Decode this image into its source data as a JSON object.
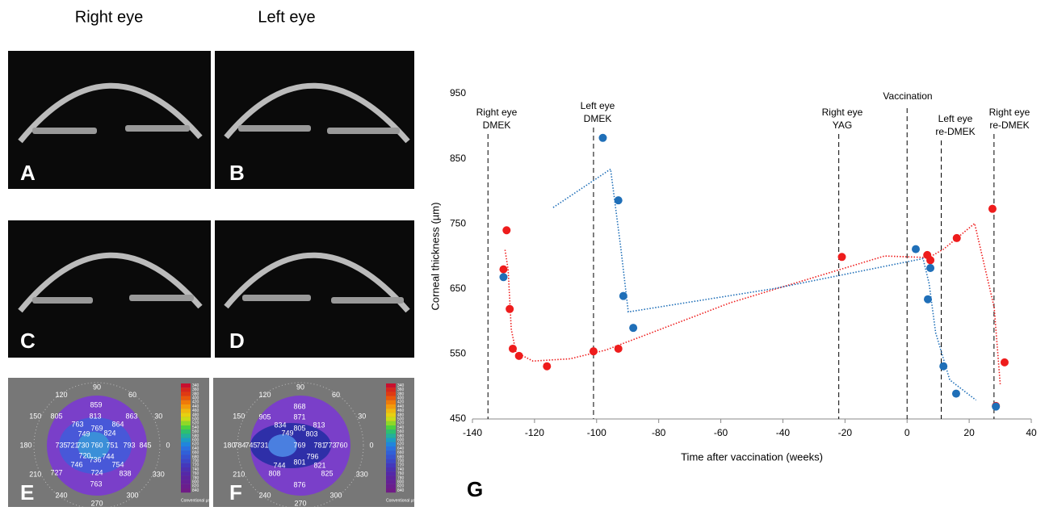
{
  "headers": {
    "right": "Right eye",
    "left": "Left eye"
  },
  "panels": {
    "A": "A",
    "B": "B",
    "C": "C",
    "D": "D",
    "E": "E",
    "F": "F",
    "G": "G"
  },
  "maps": [
    {
      "values": [
        "859",
        "763",
        "769",
        "864",
        "805",
        "813",
        "863",
        "735",
        "721",
        "730",
        "760",
        "751",
        "793",
        "845",
        "749",
        "824",
        "720",
        "736",
        "744",
        "746",
        "724",
        "754",
        "727",
        "838",
        "763"
      ],
      "ring": [
        "0",
        "30",
        "60",
        "90",
        "120",
        "150",
        "180",
        "210",
        "240",
        "270",
        "300",
        "330"
      ],
      "scale": [
        "340",
        "360",
        "380",
        "400",
        "420",
        "440",
        "460",
        "480",
        "500",
        "520",
        "540",
        "560",
        "580",
        "600",
        "620",
        "640",
        "660",
        "680",
        "700",
        "720",
        "740",
        "760",
        "780",
        "800",
        "820",
        "840"
      ],
      "scale_title": "Conventional µm"
    },
    {
      "values": [
        "868",
        "905",
        "871",
        "834",
        "805",
        "813",
        "784",
        "745",
        "731",
        "749",
        "803",
        "769",
        "781",
        "773",
        "760",
        "744",
        "801",
        "796",
        "808",
        "821",
        "876",
        "825"
      ],
      "ring": [
        "0",
        "30",
        "60",
        "90",
        "120",
        "150",
        "180",
        "210",
        "240",
        "270",
        "300",
        "330"
      ],
      "scale": [
        "340",
        "360",
        "380",
        "400",
        "420",
        "440",
        "460",
        "480",
        "500",
        "520",
        "540",
        "560",
        "580",
        "600",
        "620",
        "640",
        "660",
        "680",
        "700",
        "720",
        "740",
        "760",
        "780",
        "800",
        "820",
        "840"
      ],
      "scale_title": "Conventional µm"
    }
  ],
  "chart_data": {
    "type": "scatter",
    "x_label": "Time after vaccination (weeks)",
    "y_label": "Corneal thickness (µm)",
    "xlim": [
      -140,
      40
    ],
    "xticks": [
      -140,
      -120,
      -100,
      -80,
      -60,
      -40,
      -20,
      0,
      20,
      40
    ],
    "ylim": [
      450,
      950
    ],
    "yticks": [
      450,
      550,
      650,
      750,
      850,
      950
    ],
    "series": [
      {
        "name": "Right eye",
        "color": "#ee1c1c",
        "x": [
          -130,
          -129,
          -128,
          -127,
          -125,
          -116,
          -101,
          -93,
          -21,
          6.5,
          7.5,
          16,
          27.5,
          28.6,
          31.4
        ],
        "values": [
          680,
          740,
          619,
          558,
          547,
          531,
          554,
          558,
          699,
          702,
          694,
          728,
          773,
          470,
          537
        ]
      },
      {
        "name": "Left eye",
        "color": "#1f6fb8",
        "x": [
          -130,
          -98,
          -93,
          -91.4,
          -88.2,
          2.8,
          7.5,
          6.7,
          11.7,
          15.8,
          28.6
        ],
        "values": [
          668,
          882,
          786,
          639,
          590,
          711,
          682,
          634,
          531,
          489,
          469
        ]
      }
    ],
    "annotations": [
      {
        "x": -135,
        "label": [
          "Right eye",
          "DMEK"
        ]
      },
      {
        "x": -101,
        "label": [
          "Left eye",
          "DMEK"
        ]
      },
      {
        "x": -22,
        "label": [
          "Right eye",
          "YAG"
        ]
      },
      {
        "x": 0,
        "label": [
          "Vaccination"
        ]
      },
      {
        "x": 11,
        "label": [
          "Left eye",
          "re-DMEK"
        ]
      },
      {
        "x": 28,
        "label": [
          "Right eye",
          "re-DMEK"
        ]
      }
    ]
  }
}
